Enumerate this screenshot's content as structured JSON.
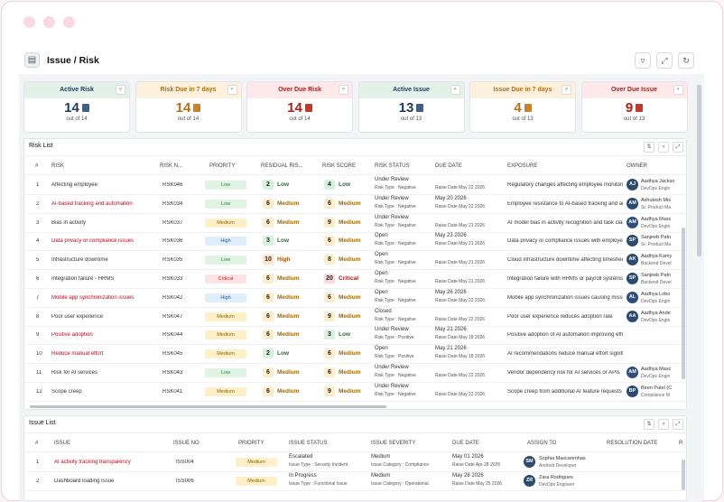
{
  "header": {
    "title": "Issue / Risk",
    "icon": "document-icon"
  },
  "cards": [
    {
      "title": "Active Risk",
      "value": "14",
      "sub": "out of 14",
      "head_bg": "#e3f1e8",
      "color": "#1f3a5f",
      "icon_color": "#3f5f86"
    },
    {
      "title": "Risk Due in 7 days",
      "value": "14",
      "sub": "out of 14",
      "head_bg": "#fdf1dd",
      "color": "#b76f14",
      "icon_color": "#c9822c"
    },
    {
      "title": "Over Due Risk",
      "value": "14",
      "sub": "out of 14",
      "head_bg": "#fde9e9",
      "color": "#b41d16",
      "icon_color": "#c0392b"
    },
    {
      "title": "Active Issue",
      "value": "13",
      "sub": "out of 13",
      "head_bg": "#e3f1e8",
      "color": "#1f3a5f",
      "icon_color": "#3f5f86"
    },
    {
      "title": "Issue Due in 7 days",
      "value": "4",
      "sub": "out of 13",
      "head_bg": "#fdf1dd",
      "color": "#b76f14",
      "icon_color": "#c9822c"
    },
    {
      "title": "Over Due Issue",
      "value": "9",
      "sub": "out of 13",
      "head_bg": "#fde9e9",
      "color": "#b41d16",
      "icon_color": "#c0392b"
    }
  ],
  "risk_list": {
    "title": "Risk List",
    "columns": [
      "#",
      "RISK",
      "RISK N...",
      "PRIORITY",
      "RESIDUAL RIS...",
      "RISK SCORE",
      "RISK STATUS",
      "DUE DATE",
      "EXPOSURE",
      "OWNER"
    ],
    "rows": [
      {
        "n": "1",
        "risk": "Affecting employee",
        "red": false,
        "no": "RSK046",
        "priority": "Low",
        "res": "2",
        "res_label": "Low",
        "score": "4",
        "score_label": "Low",
        "status": "Under Review",
        "rtype": "Negative",
        "due": "",
        "raise": "May 22 2026",
        "exposure": "Regulatory changes affecting employee monitoring",
        "owner_init": "AJ",
        "owner": "Aadhya Jackso",
        "role": "DevOps Engin"
      },
      {
        "n": "2",
        "risk": "AI-based tracking and automation",
        "red": true,
        "no": "RSK034",
        "priority": "Low",
        "res": "6",
        "res_label": "Medium",
        "score": "6",
        "score_label": "Medium",
        "status": "Under Review",
        "rtype": "Negative",
        "due": "May 20 2026",
        "raise": "May 22 2026",
        "exposure": "Employee resistance to AI-based tracking and automation",
        "owner_init": "AM",
        "owner": "Ashutosh Mis",
        "role": "Sr. Product Ma"
      },
      {
        "n": "3",
        "risk": "Bias in activity",
        "red": false,
        "no": "RSK037",
        "priority": "Medium",
        "res": "6",
        "res_label": "Medium",
        "score": "9",
        "score_label": "Medium",
        "status": "Under Review",
        "rtype": "Negative",
        "due": "",
        "raise": "May 21 2026",
        "exposure": "AI model bias in activity recognition and task classification",
        "owner_init": "AM",
        "owner": "Aadhya Masc",
        "role": "DevOps Engin"
      },
      {
        "n": "4",
        "risk": "Data privacy or compliance issues",
        "red": true,
        "no": "RSK036",
        "priority": "High",
        "res": "3",
        "res_label": "Low",
        "score": "6",
        "score_label": "Medium",
        "status": "Open",
        "rtype": "Negative",
        "due": "May 23 2026",
        "raise": "May 21 2026",
        "exposure": "Data privacy or compliance issues with employee monitoring",
        "owner_init": "SP",
        "owner": "Sanjeeb Patn",
        "role": "Sr. Product Ma"
      },
      {
        "n": "5",
        "risk": "Infrastructure downtime",
        "red": false,
        "no": "RSK035",
        "priority": "Low",
        "res": "10",
        "res_label": "High",
        "score": "8",
        "score_label": "Medium",
        "status": "Open",
        "rtype": "Negative",
        "due": "",
        "raise": "May 21 2026",
        "exposure": "Cloud infrastructure downtime affecting timesheet data",
        "owner_init": "AK",
        "owner": "Aadhya Kamy",
        "role": "Backend Devel"
      },
      {
        "n": "6",
        "risk": "Integration failure - HRMS",
        "red": false,
        "no": "RSK033",
        "priority": "Critical",
        "res": "6",
        "res_label": "Medium",
        "score": "20",
        "score_label": "Critical",
        "status": "Open",
        "rtype": "Negative",
        "due": "",
        "raise": "May 21 2026",
        "exposure": "Integration failure with HRMS or payroll systems",
        "owner_init": "SP",
        "owner": "Sanjeeb Patn",
        "role": "Backend Devel"
      },
      {
        "n": "7",
        "risk": "Mobile app synchronization issues",
        "red": true,
        "no": "RSK042",
        "priority": "High",
        "res": "6",
        "res_label": "Medium",
        "score": "6",
        "score_label": "Medium",
        "status": "Open",
        "rtype": "Negative",
        "due": "May 26 2026",
        "raise": "May 22 2026",
        "exposure": "Mobile app synchronization issues causing missing data",
        "owner_init": "AL",
        "owner": "Aadhya Lobo",
        "role": "DevOps Engin"
      },
      {
        "n": "8",
        "risk": "Poor user experience",
        "red": false,
        "no": "RSK047",
        "priority": "Medium",
        "res": "6",
        "res_label": "Medium",
        "score": "9",
        "score_label": "Medium",
        "status": "Closed",
        "rtype": "Negative",
        "due": "",
        "raise": "May 22 2026",
        "exposure": "Poor user experience reduces adoption rate",
        "owner_init": "AA",
        "owner": "Aadhya Ande",
        "role": "DevOps Engin"
      },
      {
        "n": "9",
        "risk": "Positive adoption",
        "red": true,
        "no": "RSK044",
        "priority": "Medium",
        "res": "6",
        "res_label": "Medium",
        "score": "3",
        "score_label": "Low",
        "status": "Under Review",
        "rtype": "Positive",
        "due": "May 21 2026",
        "raise": "May 18 2026",
        "exposure": "Positive adoption of AI automation improving efficiency",
        "owner_init": "",
        "owner": "",
        "role": ""
      },
      {
        "n": "10",
        "risk": "Reduce manual effort",
        "red": true,
        "no": "RSK045",
        "priority": "Medium",
        "res": "2",
        "res_label": "Low",
        "score": "6",
        "score_label": "Medium",
        "status": "Open",
        "rtype": "Positive",
        "due": "May 21 2026",
        "raise": "May 18 2026",
        "exposure": "AI recommendations reduce manual effort significantly",
        "owner_init": "",
        "owner": "",
        "role": ""
      },
      {
        "n": "11",
        "risk": "Risk for AI services",
        "red": false,
        "no": "RSK043",
        "priority": "Low",
        "res": "6",
        "res_label": "Medium",
        "score": "6",
        "score_label": "Medium",
        "status": "Under Review",
        "rtype": "Negative",
        "due": "",
        "raise": "May 22 2026",
        "exposure": "Vendor dependency risk for AI services or APIs",
        "owner_init": "AM",
        "owner": "Aadhya Masc",
        "role": "DevOps Engin"
      },
      {
        "n": "12",
        "risk": "Scope creep",
        "red": false,
        "no": "RSK041",
        "priority": "Medium",
        "res": "6",
        "res_label": "Medium",
        "score": "9",
        "score_label": "Medium",
        "status": "Under Review",
        "rtype": "Negative",
        "due": "",
        "raise": "May 22 2026",
        "exposure": "Scope creep from additional AI feature requests",
        "owner_init": "BP",
        "owner": "Biren Patel (C",
        "role": "Compliance M"
      }
    ]
  },
  "issue_list": {
    "title": "Issue List",
    "columns": [
      "#",
      "ISSUE",
      "ISSUE NO",
      "PRIORITY",
      "ISSUE STATUS",
      "ISSUE SEVERITY",
      "DUE DATE",
      "ASSIGN TO",
      "RESOLUTION DATE",
      "R"
    ],
    "rows": [
      {
        "n": "1",
        "issue": "AI activity tracking transparency",
        "red": true,
        "no": "ISS004",
        "priority": "Medium",
        "status": "Escalated",
        "itype": "Security Incident",
        "sev": "Medium",
        "cat": "Compliance",
        "due": "May 01 2026",
        "raise": "Apr 28 2026",
        "init": "SM",
        "name": "Sophia Mascarenhas",
        "role": "Android Developer"
      },
      {
        "n": "2",
        "issue": "Dashboard loading Issue",
        "red": false,
        "no": "ISS006",
        "priority": "Medium",
        "status": "In Progress",
        "itype": "Functional Issue",
        "sev": "Medium",
        "cat": "Operational",
        "due": "May 28 2026",
        "raise": "May 25 2026",
        "init": "ZR",
        "name": "Zara Rodrigues",
        "role": "DevOps Engineer"
      }
    ]
  },
  "labels": {
    "risk_type": "Risk Type :",
    "raise_date": "Raise Date",
    "issue_type": "Issue Type :",
    "issue_category": "Issue Category :"
  }
}
